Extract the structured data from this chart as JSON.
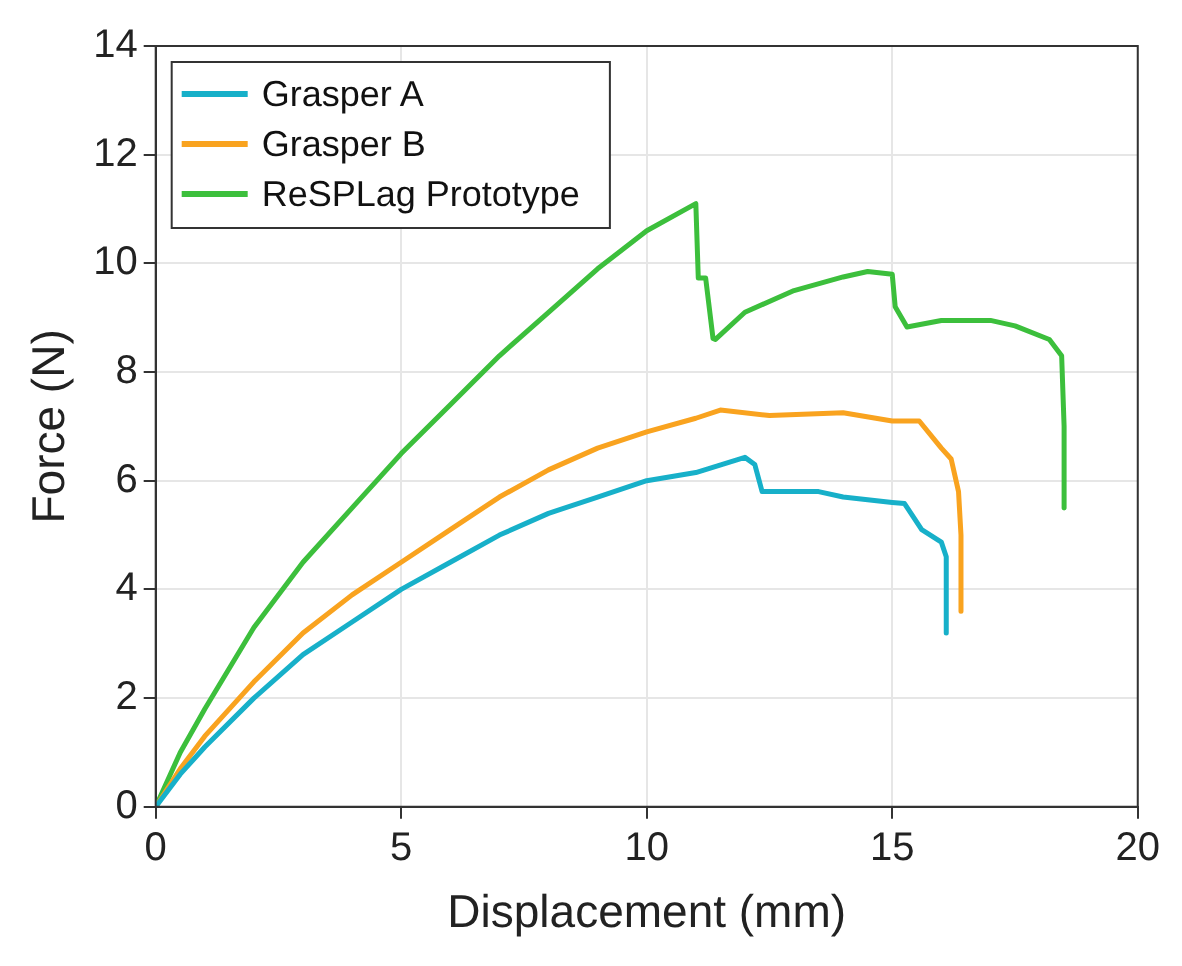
{
  "chart_data": {
    "type": "line",
    "xlabel": "Displacement (mm)",
    "ylabel": "Force (N)",
    "xlim": [
      0,
      20
    ],
    "xticks": [
      0,
      5,
      10,
      15,
      20
    ],
    "ylim": [
      0,
      14
    ],
    "yticks": [
      0,
      2,
      4,
      6,
      8,
      10,
      12,
      14
    ],
    "grid": true,
    "legend": "top left",
    "marker": "none",
    "line_style": "solid",
    "series": [
      {
        "name": "Grasper A",
        "color": "#17b0c9",
        "x": [
          0,
          0.5,
          1,
          2,
          3,
          4,
          5,
          6,
          7,
          8,
          9,
          10,
          11,
          12,
          12.2,
          12.35,
          13.5,
          14,
          15,
          15.25,
          15.6,
          16,
          16.1,
          16.1
        ],
        "values": [
          0,
          0.6,
          1.1,
          2.0,
          2.8,
          3.4,
          4.0,
          4.5,
          5.0,
          5.4,
          5.7,
          6.0,
          6.15,
          6.43,
          6.3,
          5.8,
          5.8,
          5.7,
          5.6,
          5.58,
          5.1,
          4.87,
          4.6,
          3.2
        ]
      },
      {
        "name": "Grasper B",
        "color": "#f9a31f",
        "x": [
          0,
          0.5,
          1,
          2,
          3,
          4,
          5,
          6,
          7,
          8,
          9,
          10,
          11,
          11.5,
          12.5,
          14,
          15,
          15.55,
          16,
          16.2,
          16.35,
          16.4,
          16.4
        ],
        "values": [
          0,
          0.7,
          1.3,
          2.3,
          3.2,
          3.9,
          4.5,
          5.1,
          5.7,
          6.2,
          6.6,
          6.9,
          7.15,
          7.3,
          7.2,
          7.25,
          7.1,
          7.1,
          6.6,
          6.4,
          5.8,
          5.0,
          3.6
        ]
      },
      {
        "name": "ReSPLag Prototype",
        "color": "#3cbf3c",
        "x": [
          0,
          0.5,
          1,
          2,
          3,
          4,
          5,
          6,
          7,
          8,
          9,
          10,
          11,
          11.05,
          11.2,
          11.35,
          11.4,
          12,
          13,
          14,
          14.5,
          15,
          15.06,
          15.3,
          16,
          17,
          17.5,
          18.2,
          18.45,
          18.5,
          18.5
        ],
        "values": [
          0,
          1.0,
          1.8,
          3.3,
          4.5,
          5.5,
          6.5,
          7.4,
          8.3,
          9.1,
          9.9,
          10.6,
          11.1,
          9.73,
          9.73,
          8.62,
          8.6,
          9.1,
          9.5,
          9.75,
          9.85,
          9.8,
          9.2,
          8.83,
          8.95,
          8.95,
          8.85,
          8.6,
          8.3,
          7.0,
          5.5
        ]
      }
    ]
  }
}
